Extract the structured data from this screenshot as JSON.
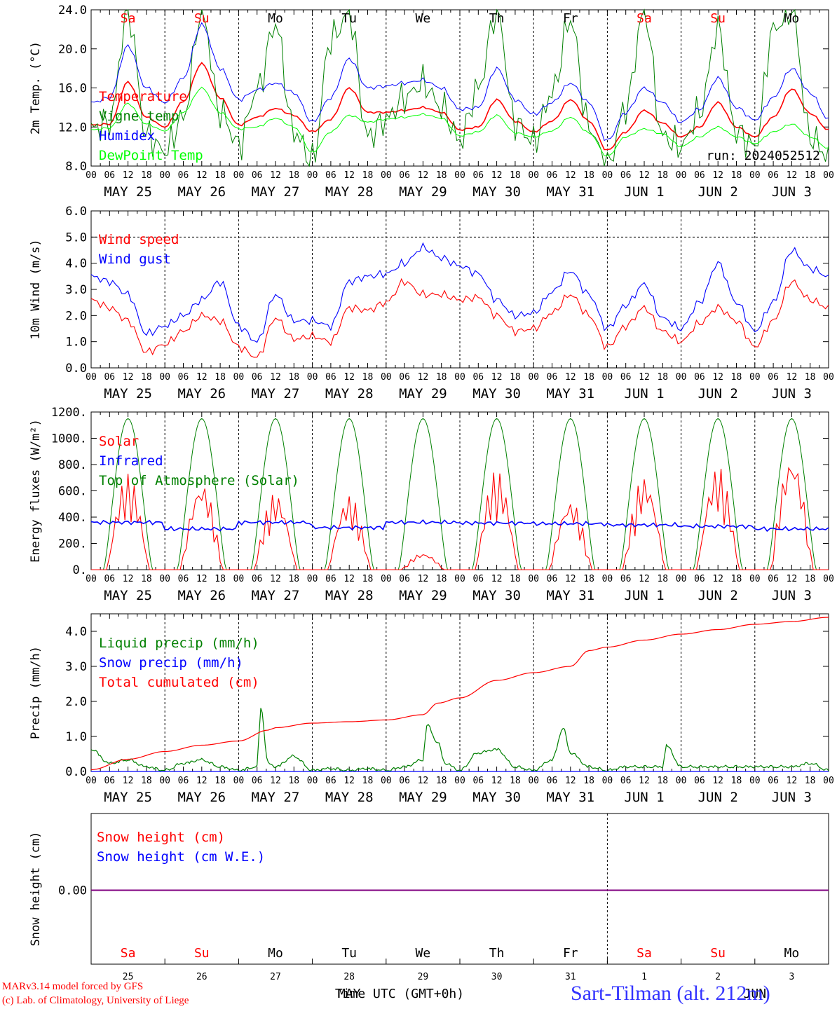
{
  "colors": {
    "red": "#ff0000",
    "green": "#008000",
    "blue": "#0000ff",
    "lightgreen": "#00ff00",
    "purple": "#800080",
    "gray": "#555555"
  },
  "x_axis": {
    "hour_labels": [
      "00",
      "06",
      "12",
      "18"
    ],
    "final_hour_label": "00",
    "date_labels": [
      "MAY 25",
      "MAY 26",
      "MAY 27",
      "MAY 28",
      "MAY 29",
      "MAY 30",
      "MAY 31",
      "JUN  1",
      "JUN  2",
      "JUN  3"
    ],
    "weekdays": [
      {
        "label": "Sa",
        "weekend": true
      },
      {
        "label": "Su",
        "weekend": true
      },
      {
        "label": "Mo",
        "weekend": false
      },
      {
        "label": "Tu",
        "weekend": false
      },
      {
        "label": "We",
        "weekend": false
      },
      {
        "label": "Th",
        "weekend": false
      },
      {
        "label": "Fr",
        "weekend": false
      },
      {
        "label": "Sa",
        "weekend": true
      },
      {
        "label": "Su",
        "weekend": true
      },
      {
        "label": "Mo",
        "weekend": false
      }
    ],
    "day_numbers": [
      "25",
      "26",
      "27",
      "28",
      "29",
      "30",
      "31",
      "1",
      "2",
      "3"
    ],
    "month_labels": [
      "MAY",
      "JUN"
    ]
  },
  "chart_data": [
    {
      "type": "line",
      "ylabel": "2m Temp. (°C)",
      "ylim": [
        8,
        24
      ],
      "yticks": [
        "8.0",
        "12.0",
        "16.0",
        "20.0",
        "24.0"
      ],
      "annotation": "run: 2024052512",
      "x_unit": "days since MAY 25 00 UTC",
      "series": [
        {
          "name": "Temperature",
          "color": "#ff0000",
          "x": [
            0,
            0.25,
            0.5,
            0.75,
            1,
            1.25,
            1.5,
            1.75,
            2,
            2.25,
            2.5,
            2.75,
            3,
            3.25,
            3.5,
            3.75,
            4,
            4.25,
            4.5,
            4.75,
            5,
            5.25,
            5.5,
            5.75,
            6,
            6.25,
            6.5,
            6.75,
            7,
            7.25,
            7.5,
            7.75,
            8,
            8.25,
            8.5,
            8.75,
            9,
            9.25,
            9.5,
            9.75,
            10
          ],
          "y": [
            12.2,
            12.3,
            16.6,
            13.0,
            12.0,
            14.6,
            18.5,
            15.0,
            12.2,
            13.0,
            13.9,
            13.2,
            11.5,
            12.8,
            16.0,
            13.5,
            13.5,
            13.7,
            14.0,
            13.5,
            11.7,
            12.0,
            14.8,
            12.6,
            11.5,
            12.6,
            14.8,
            12.6,
            9.6,
            11.5,
            13.7,
            12.4,
            11.0,
            12.0,
            14.5,
            12.0,
            11.0,
            13.0,
            15.9,
            13.4,
            11.7
          ]
        },
        {
          "name": "Vigne temp",
          "color": "#008000",
          "x": [
            0,
            0.25,
            0.5,
            0.75,
            1,
            1.25,
            1.5,
            1.75,
            2,
            2.25,
            2.5,
            2.75,
            3,
            3.25,
            3.5,
            3.75,
            4,
            4.25,
            4.5,
            4.75,
            5,
            5.25,
            5.5,
            5.75,
            6,
            6.25,
            6.5,
            6.75,
            7,
            7.25,
            7.5,
            7.75,
            8,
            8.25,
            8.5,
            8.75,
            9,
            9.25,
            9.5,
            9.75,
            10
          ],
          "y": [
            11.8,
            12.5,
            23.8,
            11.2,
            9.5,
            13.0,
            24.0,
            13.5,
            10.2,
            15.8,
            22.5,
            11.5,
            8.5,
            21.0,
            23.5,
            11.0,
            12.8,
            15.0,
            16.5,
            14.0,
            10.6,
            16.0,
            24.0,
            12.5,
            10.5,
            15.5,
            23.0,
            12.0,
            8.0,
            14.0,
            24.0,
            11.0,
            10.0,
            13.5,
            22.0,
            11.5,
            10.0,
            22.0,
            24.0,
            11.0,
            9.0
          ]
        },
        {
          "name": "Humidex",
          "color": "#0000ff",
          "x": [
            0,
            0.25,
            0.5,
            0.75,
            1,
            1.25,
            1.5,
            1.75,
            2,
            2.25,
            2.5,
            2.75,
            3,
            3.25,
            3.5,
            3.75,
            4,
            4.25,
            4.5,
            4.75,
            5,
            5.25,
            5.5,
            5.75,
            6,
            6.25,
            6.5,
            6.75,
            7,
            7.25,
            7.5,
            7.75,
            8,
            8.25,
            8.5,
            8.75,
            9,
            9.25,
            9.5,
            9.75,
            10
          ],
          "y": [
            14.5,
            15.0,
            20.3,
            16.0,
            14.5,
            17.0,
            22.5,
            18.0,
            14.8,
            15.8,
            16.5,
            15.5,
            12.5,
            15.0,
            19.0,
            16.0,
            16.2,
            16.5,
            16.8,
            16.0,
            13.8,
            14.0,
            18.0,
            14.8,
            13.3,
            14.5,
            16.5,
            14.5,
            10.6,
            13.5,
            16.0,
            14.5,
            12.5,
            13.8,
            17.0,
            14.0,
            12.7,
            15.0,
            18.0,
            15.5,
            12.8
          ]
        },
        {
          "name": "DewPoint Temp",
          "color": "#00ff00",
          "x": [
            0,
            0.25,
            0.5,
            0.75,
            1,
            1.25,
            1.5,
            1.75,
            2,
            2.25,
            2.5,
            2.75,
            3,
            3.25,
            3.5,
            3.75,
            4,
            4.25,
            4.5,
            4.75,
            5,
            5.25,
            5.5,
            5.75,
            6,
            6.25,
            6.5,
            6.75,
            7,
            7.25,
            7.5,
            7.75,
            8,
            8.25,
            8.5,
            8.75,
            9,
            9.25,
            9.5,
            9.75,
            10
          ],
          "y": [
            11.7,
            11.9,
            14.4,
            12.3,
            11.6,
            13.5,
            16.0,
            13.5,
            11.8,
            12.0,
            12.9,
            12.0,
            9.4,
            11.5,
            13.2,
            12.5,
            12.8,
            13.0,
            13.3,
            12.9,
            11.1,
            11.5,
            13.2,
            11.4,
            11.0,
            11.6,
            13.0,
            11.4,
            9.0,
            11.0,
            11.8,
            11.3,
            10.0,
            11.0,
            12.0,
            11.0,
            10.3,
            11.5,
            12.3,
            11.0,
            9.8
          ]
        }
      ]
    },
    {
      "type": "line",
      "ylabel": "10m Wind (m/s)",
      "ylim": [
        0,
        6
      ],
      "yticks": [
        "0.0",
        "1.0",
        "2.0",
        "3.0",
        "4.0",
        "5.0",
        "6.0"
      ],
      "reference_line": 5.0,
      "x_unit": "days since MAY 25 00 UTC",
      "series": [
        {
          "name": "Wind speed",
          "color": "#ff0000",
          "x": [
            0,
            0.25,
            0.5,
            0.75,
            1,
            1.25,
            1.5,
            1.75,
            2,
            2.25,
            2.5,
            2.75,
            3,
            3.25,
            3.5,
            3.75,
            4,
            4.25,
            4.5,
            4.75,
            5,
            5.25,
            5.5,
            5.75,
            6,
            6.25,
            6.5,
            6.75,
            7,
            7.25,
            7.5,
            7.75,
            8,
            8.25,
            8.5,
            8.75,
            9,
            9.25,
            9.5,
            9.75,
            10
          ],
          "y": [
            2.6,
            2.3,
            1.8,
            0.6,
            0.9,
            1.4,
            2.0,
            1.8,
            0.8,
            0.4,
            1.9,
            1.1,
            1.2,
            1.0,
            2.3,
            2.2,
            2.5,
            3.3,
            2.8,
            2.8,
            2.6,
            2.7,
            2.0,
            1.4,
            1.5,
            2.1,
            2.8,
            2.0,
            0.8,
            1.6,
            2.3,
            1.4,
            1.0,
            1.7,
            2.3,
            1.8,
            0.8,
            1.8,
            3.3,
            2.6,
            2.3
          ]
        },
        {
          "name": "Wind gust",
          "color": "#0000ff",
          "x": [
            0,
            0.25,
            0.5,
            0.75,
            1,
            1.25,
            1.5,
            1.75,
            2,
            2.25,
            2.5,
            2.75,
            3,
            3.25,
            3.5,
            3.75,
            4,
            4.25,
            4.5,
            4.75,
            5,
            5.25,
            5.5,
            5.75,
            6,
            6.25,
            6.5,
            6.75,
            7,
            7.25,
            7.5,
            7.75,
            8,
            8.25,
            8.5,
            8.75,
            9,
            9.25,
            9.5,
            9.75,
            10
          ],
          "y": [
            3.5,
            3.3,
            2.8,
            1.3,
            1.6,
            2.0,
            2.6,
            3.3,
            1.6,
            1.0,
            2.8,
            1.8,
            1.8,
            1.6,
            3.3,
            3.5,
            3.6,
            4.0,
            4.6,
            4.2,
            3.9,
            3.6,
            2.6,
            2.0,
            2.1,
            2.9,
            3.7,
            2.8,
            1.5,
            2.4,
            3.2,
            1.9,
            1.5,
            2.5,
            4.0,
            2.5,
            1.4,
            2.5,
            4.5,
            3.8,
            3.5
          ]
        }
      ]
    },
    {
      "type": "line",
      "ylabel": "Energy fluxes (W/m²)",
      "ylim": [
        0,
        1200
      ],
      "yticks": [
        "0.",
        "200.",
        "400.",
        "600.",
        "800.",
        "1000.",
        "1200."
      ],
      "x_unit": "days since MAY 25 00 UTC",
      "series": [
        {
          "name": "Solar",
          "color": "#ff0000",
          "daily_peaks": [
            730,
            680,
            590,
            570,
            130,
            760,
            540,
            720,
            790,
            890
          ]
        },
        {
          "name": "Infrared",
          "color": "#0000ff",
          "daily_values": [
            360,
            310,
            360,
            320,
            360,
            355,
            350,
            340,
            330,
            310
          ]
        },
        {
          "name": "Top of Atmosphere (Solar)",
          "color": "#008000",
          "daily_peak": 1150
        }
      ]
    },
    {
      "type": "line",
      "ylabel": "Precip (mm/h)",
      "ylim": [
        0,
        4.5
      ],
      "yticks": [
        "0.0",
        "1.0",
        "2.0",
        "3.0",
        "4.0"
      ],
      "x_unit": "days since MAY 25 00 UTC",
      "series": [
        {
          "name": "Liquid precip (mm/h)",
          "color": "#008000",
          "x": [
            0,
            0.25,
            0.5,
            0.75,
            1,
            1.25,
            1.5,
            1.75,
            2,
            2.25,
            2.3,
            2.4,
            2.5,
            2.75,
            3,
            3.25,
            3.5,
            3.75,
            4,
            4.25,
            4.5,
            4.55,
            4.7,
            4.8,
            5,
            5.25,
            5.5,
            5.75,
            6,
            6.25,
            6.4,
            6.5,
            6.75,
            7,
            7.25,
            7.5,
            7.75,
            7.8,
            8,
            8.25,
            8.5,
            8.75,
            9,
            9.25,
            9.5,
            9.75,
            10
          ],
          "y": [
            0.6,
            0.2,
            0.3,
            0.1,
            0.0,
            0.2,
            0.3,
            0.1,
            0.0,
            0.1,
            1.8,
            0.2,
            0.1,
            0.4,
            0.0,
            0.05,
            0.0,
            0.05,
            0.0,
            0.1,
            0.3,
            1.3,
            0.8,
            0.2,
            0.0,
            0.5,
            0.6,
            0.1,
            0.0,
            0.3,
            1.2,
            0.5,
            0.1,
            0.0,
            0.1,
            0.1,
            0.1,
            0.7,
            0.1,
            0.1,
            0.1,
            0.1,
            0.1,
            0.1,
            0.1,
            0.2,
            0.0
          ]
        },
        {
          "name": "Snow precip (mm/h)",
          "color": "#0000ff",
          "x": [
            0,
            10
          ],
          "y": [
            0,
            0
          ]
        },
        {
          "name": "Total cumulated (cm)",
          "color": "#ff0000",
          "x": [
            0,
            0.5,
            1,
            1.5,
            2,
            2.4,
            2.5,
            3,
            3.5,
            4,
            4.5,
            4.7,
            5,
            5.5,
            6,
            6.5,
            6.75,
            7,
            7.5,
            8,
            8.5,
            9,
            9.5,
            10
          ],
          "y": [
            0.05,
            0.35,
            0.57,
            0.75,
            0.87,
            1.18,
            1.25,
            1.38,
            1.42,
            1.47,
            1.62,
            1.95,
            2.1,
            2.6,
            2.82,
            3.0,
            3.45,
            3.55,
            3.75,
            3.92,
            4.05,
            4.2,
            4.28,
            4.4
          ]
        }
      ]
    },
    {
      "type": "line",
      "ylabel": "Snow height (cm)",
      "yticks": [
        "0.00"
      ],
      "xlabel": "Time UTC (GMT+0h)",
      "x_unit": "days since MAY 25 00 UTC",
      "series": [
        {
          "name": "Snow height (cm)",
          "color": "#ff0000",
          "x": [
            0,
            10
          ],
          "y": [
            0,
            0
          ]
        },
        {
          "name": "Snow height (cm W.E.)",
          "color": "#0000ff",
          "x": [
            0,
            10
          ],
          "y": [
            0,
            0
          ]
        }
      ]
    }
  ],
  "footer": {
    "credit_line1": "MARv3.14 model forced by GFS",
    "credit_line2": "(c) Lab. of Climatology, University of Liege",
    "station": "Sart-Tilman (alt. 212m)"
  }
}
